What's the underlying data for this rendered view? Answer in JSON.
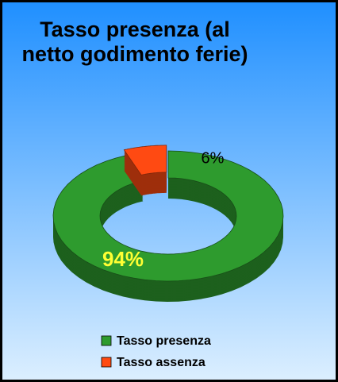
{
  "chart_data": {
    "type": "donut3d",
    "title": "Tasso presenza (al netto godimento ferie)",
    "categories": [
      "Tasso presenza",
      "Tasso assenza"
    ],
    "values": [
      94,
      6
    ],
    "value_labels": [
      "94%",
      "6%"
    ],
    "colors": [
      "#2e9b2e",
      "#ff4a12"
    ]
  }
}
